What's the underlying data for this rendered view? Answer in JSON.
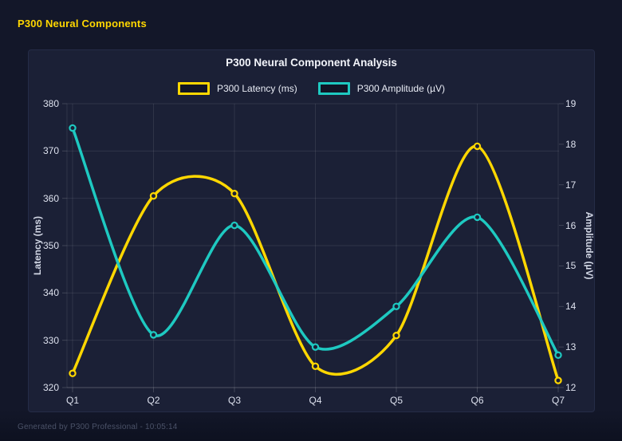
{
  "header": {
    "title": "P300 Neural Components"
  },
  "footer": {
    "text": "Generated by P300 Professional - 10:05:14"
  },
  "colors": {
    "accent_yellow": "#FFD700",
    "accent_teal": "#1EC9C1",
    "background": "#131729",
    "panel": "#1B2036",
    "gridline": "rgba(255,255,255,0.09)",
    "tick_mark": "rgba(255,255,255,0.16)"
  },
  "chart_data": {
    "type": "line",
    "title": "P300 Neural Component Analysis",
    "categories": [
      "Q1",
      "Q2",
      "Q3",
      "Q4",
      "Q5",
      "Q6",
      "Q7"
    ],
    "series": [
      {
        "name": "P300 Latency (ms)",
        "axis": "left",
        "color": "#FFD700",
        "values": [
          323,
          360.5,
          361,
          324.5,
          331,
          371,
          321.5
        ]
      },
      {
        "name": "P300 Amplitude (µV)",
        "axis": "right",
        "color": "#1EC9C1",
        "values": [
          18.4,
          13.3,
          16.0,
          13.0,
          14.0,
          16.2,
          12.8
        ]
      }
    ],
    "left_axis": {
      "label": "Latency (ms)",
      "min": 320,
      "max": 380,
      "step": 10
    },
    "right_axis": {
      "label": "Amplitude (µV)",
      "min": 12,
      "max": 19,
      "step": 1
    },
    "grid": true,
    "legend_position": "top",
    "line_style": "smooth-spline",
    "point_style": "ring-circle"
  }
}
